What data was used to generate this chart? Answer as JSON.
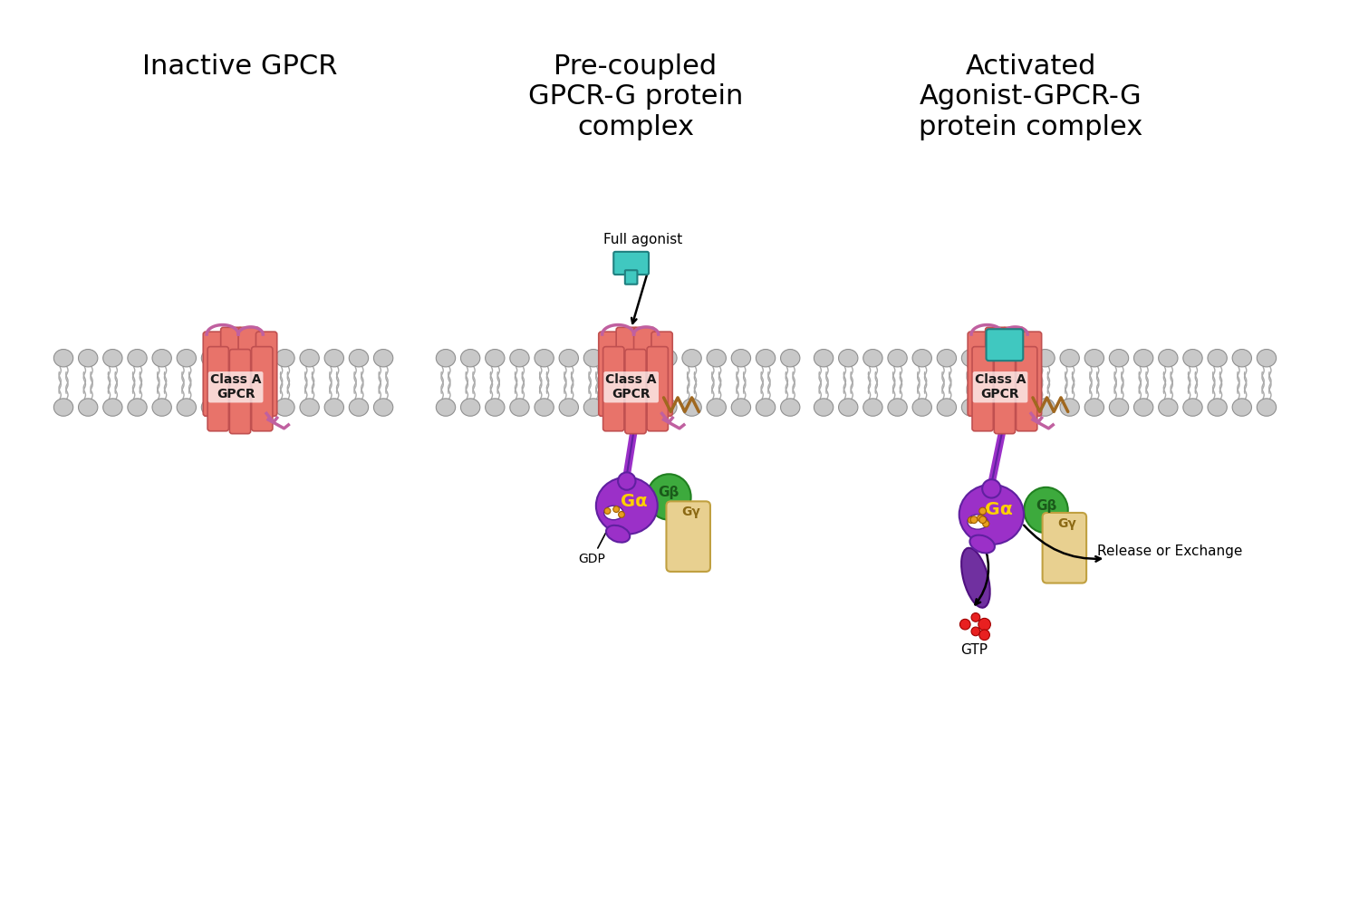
{
  "background_color": "#ffffff",
  "panel1_title": "Inactive GPCR",
  "panel2_title": "Pre-coupled\nGPCR-G protein\ncomplex",
  "panel3_title": "Activated\nAgonist-GPCR-G\nprotein complex",
  "colors": {
    "receptor_fill": "#E8736A",
    "receptor_stroke": "#C05050",
    "membrane_lipid": "#C8C8C8",
    "membrane_tail": "#AAAAAA",
    "loop_color": "#C060A0",
    "galpha_fill": "#9B30C8",
    "gbeta_fill": "#3DAA3D",
    "ggamma_fill": "#E8D090",
    "agonist_fill": "#40C8C0",
    "agonist_stroke": "#208080",
    "gdp_color": "#E8A020",
    "gtp_color": "#E82020",
    "zigzag_color": "#A06820",
    "text_color": "#000000",
    "purple_arm": "#7030A0"
  }
}
